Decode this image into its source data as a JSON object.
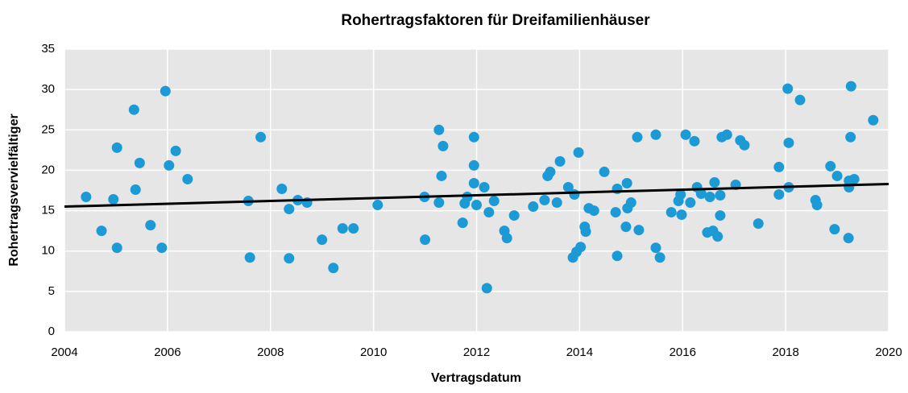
{
  "chart_data": {
    "type": "scatter",
    "title": "Rohertragsfaktoren für Dreifamilienhäuser",
    "x_label": "Vertragsdatum",
    "y_label": "Rohertragsvervielfältiger",
    "color": "#1b9ad6",
    "x": [
      2004.42,
      2004.72,
      2004.95,
      2005.02,
      2005.02,
      2005.35,
      2005.38,
      2005.46,
      2005.67,
      2005.89,
      2005.96,
      2006.03,
      2006.16,
      2006.39,
      2007.57,
      2007.6,
      2007.81,
      2008.22,
      2008.36,
      2008.36,
      2008.53,
      2008.71,
      2009.0,
      2009.22,
      2009.4,
      2009.61,
      2010.08,
      2010.99,
      2011.0,
      2011.27,
      2011.27,
      2011.32,
      2011.35,
      2011.73,
      2011.77,
      2011.82,
      2011.95,
      2011.95,
      2011.95,
      2012.0,
      2012.15,
      2012.2,
      2012.24,
      2012.34,
      2012.54,
      2012.59,
      2012.73,
      2013.1,
      2013.32,
      2013.38,
      2013.43,
      2013.56,
      2013.62,
      2013.78,
      2013.87,
      2013.9,
      2013.94,
      2013.98,
      2014.02,
      2014.1,
      2014.12,
      2014.18,
      2014.28,
      2014.48,
      2014.7,
      2014.73,
      2014.73,
      2014.9,
      2014.92,
      2014.93,
      2015.0,
      2015.12,
      2015.15,
      2015.48,
      2015.48,
      2015.56,
      2015.78,
      2015.92,
      2015.96,
      2015.98,
      2016.06,
      2016.15,
      2016.23,
      2016.28,
      2016.36,
      2016.48,
      2016.53,
      2016.59,
      2016.62,
      2016.68,
      2016.73,
      2016.73,
      2016.76,
      2016.86,
      2017.03,
      2017.12,
      2017.2,
      2017.47,
      2017.87,
      2017.87,
      2018.04,
      2018.28,
      2018.06,
      2018.06,
      2018.58,
      2018.61,
      2018.87,
      2018.95,
      2019.0,
      2019.22,
      2019.23,
      2019.23,
      2019.26,
      2019.33,
      2019.7,
      2019.27
    ],
    "values": [
      16.7,
      12.5,
      16.4,
      22.8,
      10.4,
      27.5,
      17.6,
      20.9,
      13.2,
      10.4,
      29.8,
      20.6,
      22.4,
      18.9,
      16.2,
      9.2,
      24.1,
      17.7,
      15.2,
      9.1,
      16.3,
      16.0,
      11.4,
      7.9,
      12.8,
      12.8,
      15.7,
      16.7,
      11.4,
      25.0,
      16.0,
      19.3,
      23.0,
      13.5,
      15.9,
      16.7,
      24.1,
      20.6,
      18.4,
      15.7,
      17.9,
      5.4,
      14.8,
      16.2,
      12.5,
      11.6,
      14.4,
      15.5,
      16.3,
      19.3,
      19.8,
      16.0,
      21.1,
      17.9,
      9.2,
      17.0,
      9.9,
      22.2,
      10.5,
      13.0,
      12.4,
      15.3,
      15.0,
      19.8,
      14.8,
      17.7,
      9.4,
      13.0,
      18.4,
      15.3,
      16.0,
      24.1,
      12.6,
      24.4,
      10.4,
      9.2,
      14.8,
      16.2,
      17.0,
      14.5,
      24.4,
      16.0,
      23.6,
      17.9,
      17.1,
      12.3,
      16.7,
      12.5,
      18.5,
      11.8,
      14.4,
      16.9,
      24.1,
      24.4,
      18.2,
      23.7,
      23.1,
      13.4,
      20.4,
      17.0,
      30.1,
      28.7,
      23.4,
      17.9,
      16.3,
      15.7,
      20.5,
      12.7,
      19.3,
      11.6,
      18.7,
      17.9,
      24.1,
      18.9,
      26.2,
      30.4
    ],
    "trend": {
      "x": [
        2004,
        2020
      ],
      "values": [
        15.5,
        18.3
      ],
      "color": "#000000"
    },
    "xlim": [
      2004,
      2020
    ],
    "xticks": [
      2004,
      2006,
      2008,
      2010,
      2012,
      2014,
      2016,
      2018,
      2020
    ],
    "ylim": [
      0,
      35
    ],
    "yticks": [
      0,
      5,
      10,
      15,
      20,
      25,
      30,
      35
    ],
    "grid": true
  }
}
